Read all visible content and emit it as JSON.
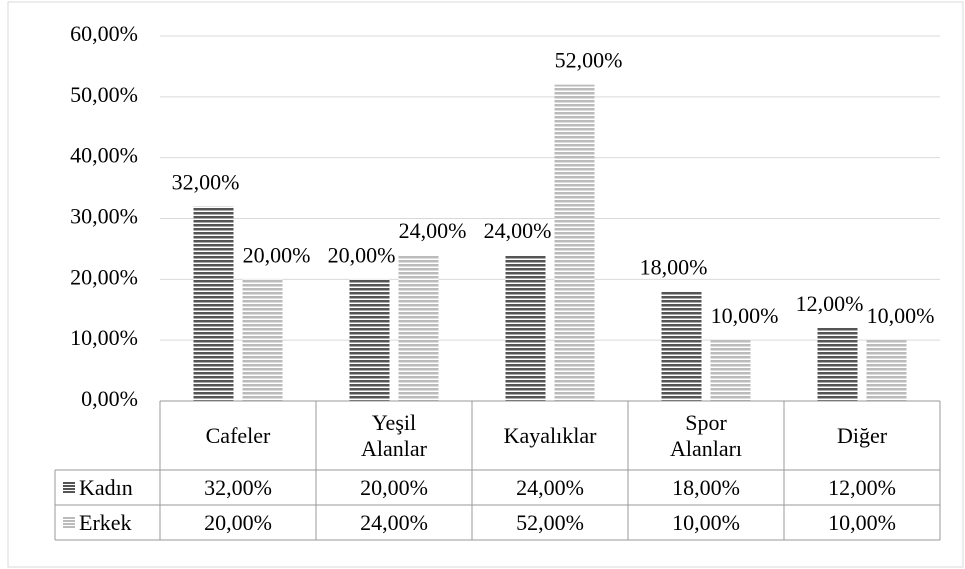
{
  "chart_data": {
    "type": "bar",
    "categories": [
      "Cafeler",
      "Yeşil Alanlar",
      "Kayalıklar",
      "Spor Alanları",
      "Diğer"
    ],
    "series": [
      {
        "name": "Kadın",
        "color": "#555555",
        "values": [
          32,
          20,
          24,
          18,
          12
        ],
        "value_labels": [
          "32,00%",
          "20,00%",
          "24,00%",
          "18,00%",
          "12,00%"
        ]
      },
      {
        "name": "Erkek",
        "color": "#bbbbbb",
        "values": [
          20,
          24,
          52,
          10,
          10
        ],
        "value_labels": [
          "20,00%",
          "24,00%",
          "52,00%",
          "10,00%",
          "10,00%"
        ]
      }
    ],
    "ylim": [
      0,
      60
    ],
    "yticks": [
      {
        "value": 0,
        "label": "0,00%"
      },
      {
        "value": 10,
        "label": "10,00%"
      },
      {
        "value": 20,
        "label": "20,00%"
      },
      {
        "value": 30,
        "label": "30,00%"
      },
      {
        "value": 40,
        "label": "40,00%"
      },
      {
        "value": 50,
        "label": "50,00%"
      },
      {
        "value": 60,
        "label": "60,00%"
      }
    ],
    "grid": true,
    "data_table": true
  }
}
